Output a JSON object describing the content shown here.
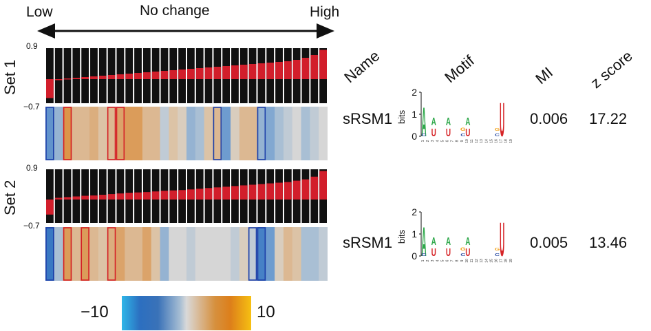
{
  "axis": {
    "low": "Low",
    "mid": "No change",
    "high": "High"
  },
  "table_headers": {
    "name": "Name",
    "motif": "Motif",
    "mi": "MI",
    "z": "z score"
  },
  "sets": [
    {
      "label": "Set 1",
      "ymax": "0.9",
      "ymin": "−0.7",
      "bar_values": [
        -0.55,
        0.0,
        0.02,
        0.04,
        0.06,
        0.08,
        0.1,
        0.12,
        0.14,
        0.16,
        0.18,
        0.2,
        0.22,
        0.24,
        0.26,
        0.28,
        0.3,
        0.32,
        0.34,
        0.36,
        0.38,
        0.4,
        0.42,
        0.44,
        0.46,
        0.48,
        0.5,
        0.52,
        0.56,
        0.62,
        0.7,
        0.85
      ],
      "heat": [
        -6,
        -3,
        7,
        3,
        3,
        4,
        2,
        3,
        5,
        6,
        6,
        3,
        3,
        -1,
        2,
        1,
        -3,
        -2,
        2,
        3,
        -5,
        1,
        3,
        3,
        -3,
        -4,
        -2,
        -1,
        0,
        -2,
        -1,
        0
      ],
      "boxes_blue": [
        0,
        19,
        24
      ],
      "boxes_red": [
        2,
        7,
        8
      ],
      "name": "sRSM1",
      "mi": "0.006",
      "z": "17.22"
    },
    {
      "label": "Set 2",
      "ymax": "0.9",
      "ymin": "−0.7",
      "bar_values": [
        -0.45,
        0.05,
        0.07,
        0.09,
        0.11,
        0.12,
        0.14,
        0.16,
        0.18,
        0.2,
        0.21,
        0.22,
        0.24,
        0.26,
        0.27,
        0.28,
        0.3,
        0.32,
        0.34,
        0.36,
        0.38,
        0.4,
        0.42,
        0.44,
        0.46,
        0.48,
        0.5,
        0.52,
        0.56,
        0.6,
        0.68,
        0.85
      ],
      "heat": [
        -9,
        -2,
        6,
        3,
        6,
        3,
        2,
        4,
        5,
        3,
        3,
        5,
        2,
        -3,
        0,
        0,
        -1,
        0,
        0,
        0,
        0,
        -1,
        1,
        -1,
        -8,
        -5,
        1,
        3,
        2,
        -2,
        -2,
        -1
      ],
      "boxes_blue": [
        0,
        23,
        24
      ],
      "boxes_red": [
        2,
        4,
        7
      ],
      "name": "sRSM1",
      "mi": "0.005",
      "z": "13.46"
    }
  ],
  "motif": {
    "ylabel": "bits",
    "yticks": [
      "0",
      "1",
      "2"
    ],
    "positions": [
      "1",
      "2",
      "3",
      "4",
      "5",
      "6",
      "7",
      "8",
      "9",
      "10",
      "11",
      "12",
      "13",
      "14",
      "15",
      "16",
      "17",
      "18",
      "19"
    ]
  },
  "colorbar": {
    "min_label": "−10",
    "max_label": "10"
  },
  "colors": {
    "bar_bg": "#111111",
    "bar_red": "#d21e2b",
    "box_blue": "#1d3fa8",
    "box_red": "#d41f26",
    "motif_green": "#2ea84a",
    "motif_red": "#d62427",
    "motif_orange": "#f2a21c",
    "motif_blue": "#2f4fa5"
  }
}
